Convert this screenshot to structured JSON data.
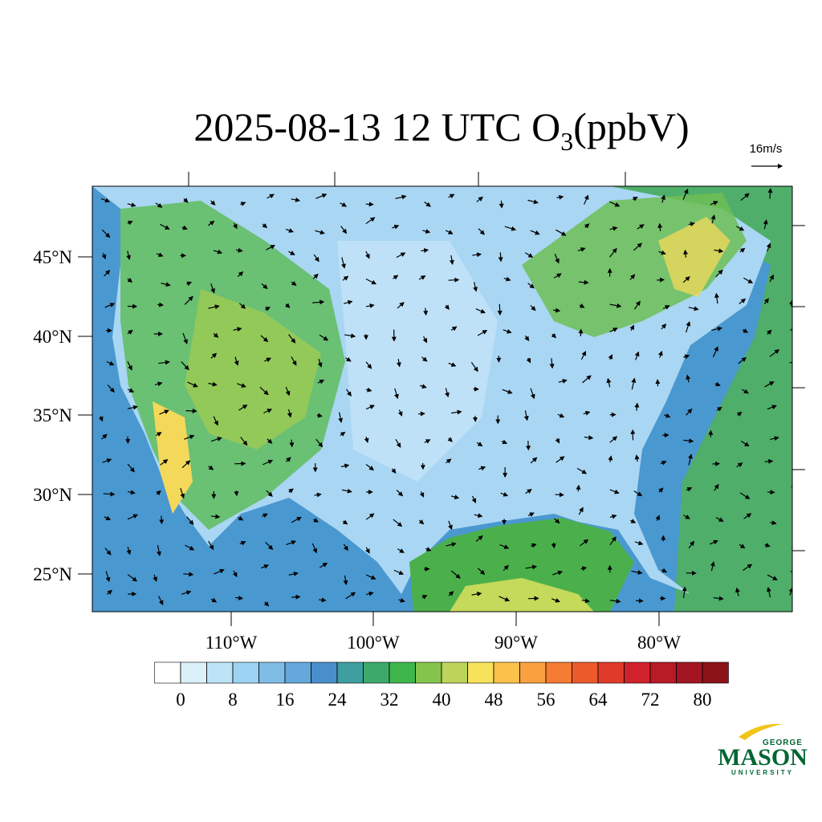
{
  "title": {
    "main": "2025-08-13 12 UTC O",
    "subscript": "3",
    "tail": "(ppbV)"
  },
  "wind_scale": "16m/s",
  "lat_labels": [
    "45°N",
    "40°N",
    "35°N",
    "30°N",
    "25°N"
  ],
  "lon_labels": [
    "110°W",
    "100°W",
    "90°W",
    "80°W"
  ],
  "colorbar": {
    "levels": [
      0,
      4,
      8,
      12,
      16,
      20,
      24,
      28,
      32,
      36,
      40,
      44,
      48,
      52,
      56,
      60,
      64,
      68,
      72,
      76,
      80
    ],
    "ticks": [
      0,
      8,
      16,
      24,
      32,
      40,
      48,
      56,
      64,
      72,
      80
    ],
    "colors": [
      "#ffffff",
      "#dcf0fa",
      "#bde3f6",
      "#9dd3f2",
      "#80bde6",
      "#64a8dc",
      "#4a8ecc",
      "#3f9fa0",
      "#3daa6a",
      "#3fb64a",
      "#84c44c",
      "#bcd45a",
      "#f7e35a",
      "#fbc14a",
      "#f9a13f",
      "#f57c32",
      "#ec5a2c",
      "#e03a2b",
      "#d0222c",
      "#b81a26",
      "#a31621",
      "#8c1419"
    ]
  },
  "logo": {
    "top": "GEORGE",
    "main": "MASON",
    "bottom": "UNIVERSITY"
  }
}
